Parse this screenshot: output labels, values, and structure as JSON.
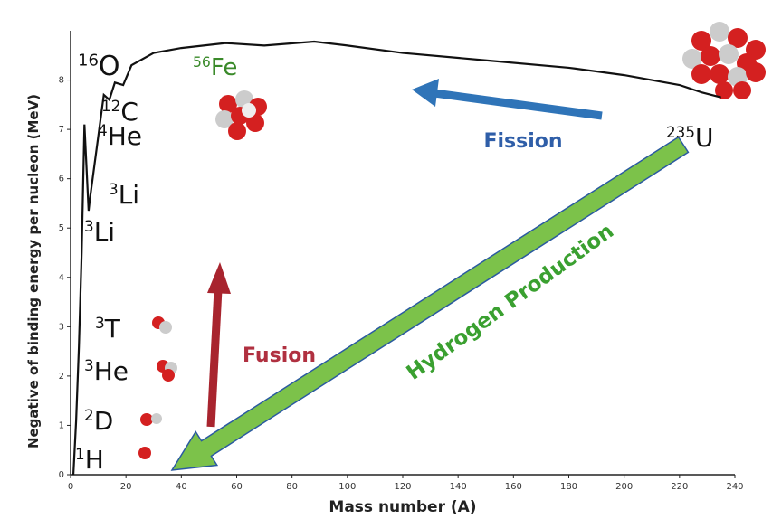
{
  "chart_data": {
    "type": "line",
    "x_label": "Mass number (A)",
    "y_label": "Negative of binding energy per nucleon (MeV)",
    "xlim": [
      0,
      240
    ],
    "ylim": [
      0,
      9
    ],
    "xticks": [
      0,
      20,
      40,
      60,
      80,
      100,
      120,
      140,
      160,
      180,
      200,
      220,
      240
    ],
    "yticks": [
      0,
      1,
      2,
      3,
      4,
      5,
      6,
      7,
      8
    ],
    "series": [
      {
        "color": "#111111",
        "x": [
          1,
          2,
          3,
          4,
          5,
          6.5,
          7,
          12,
          14,
          16,
          19,
          22,
          30,
          40,
          56,
          70,
          88,
          100,
          120,
          150,
          180,
          200,
          220,
          228,
          235
        ],
        "values": [
          0,
          1.1,
          2.6,
          4.5,
          7.1,
          5.35,
          5.6,
          7.7,
          7.6,
          7.95,
          7.9,
          8.3,
          8.55,
          8.65,
          8.75,
          8.7,
          8.78,
          8.7,
          8.55,
          8.4,
          8.25,
          8.1,
          7.9,
          7.75,
          7.65
        ]
      }
    ],
    "annotations": [
      {
        "mass": "16",
        "symbol": "O"
      },
      {
        "mass": "12",
        "symbol": "C"
      },
      {
        "mass": "4",
        "symbol": "He"
      },
      {
        "mass": "3",
        "symbol": "Li"
      },
      {
        "mass": "3",
        "symbol": "Li"
      },
      {
        "mass": "3",
        "symbol": "T"
      },
      {
        "mass": "3",
        "symbol": "He"
      },
      {
        "mass": "2",
        "symbol": "D"
      },
      {
        "mass": "1",
        "symbol": "H"
      },
      {
        "mass": "56",
        "symbol": "Fe"
      },
      {
        "mass": "235",
        "symbol": "U"
      }
    ],
    "labels": {
      "fission": "Fission",
      "fusion": "Fusion",
      "hydrogen": "Hydrogen Production"
    }
  }
}
